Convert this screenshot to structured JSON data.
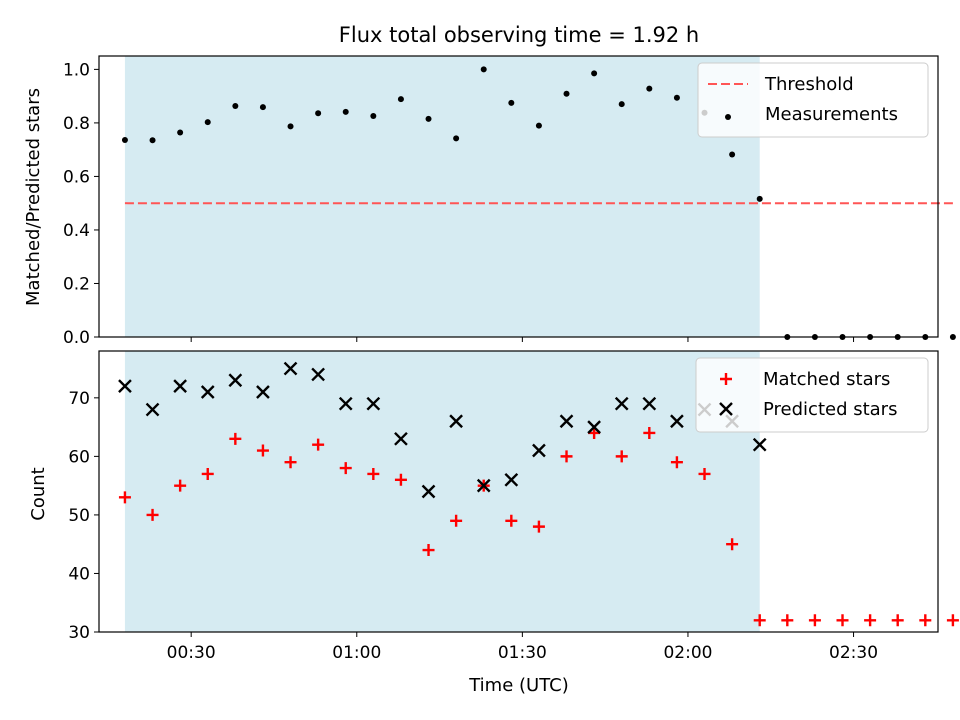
{
  "figure": {
    "title": "Flux total observing time = 1.92 h",
    "xlabel": "Time (UTC)"
  },
  "chart_data": [
    {
      "type": "scatter",
      "ylabel": "Matched/Predicted stars",
      "ylim": [
        0.0,
        1.05
      ],
      "yticks": [
        0.0,
        0.2,
        0.4,
        0.6,
        0.8,
        1.0
      ],
      "ytick_labels": [
        "0.0",
        "0.2",
        "0.4",
        "0.6",
        "0.8",
        "1.0"
      ],
      "legend_position": "top-right",
      "shaded_interval": {
        "start": "00:18",
        "end": "02:13",
        "color": "#add8e6"
      },
      "threshold": {
        "name": "Threshold",
        "value": 0.5,
        "x_start": "00:18",
        "x_end": "02:48",
        "color": "#ff5555",
        "style": "dashed"
      },
      "series": [
        {
          "name": "Measurements",
          "marker": "dot",
          "color": "#000000",
          "x": [
            "00:18",
            "00:23",
            "00:28",
            "00:33",
            "00:38",
            "00:43",
            "00:48",
            "00:53",
            "00:58",
            "01:03",
            "01:08",
            "01:13",
            "01:18",
            "01:23",
            "01:28",
            "01:33",
            "01:38",
            "01:43",
            "01:48",
            "01:53",
            "01:58",
            "02:03",
            "02:08",
            "02:13",
            "02:18",
            "02:23",
            "02:28",
            "02:33",
            "02:38",
            "02:43",
            "02:48"
          ],
          "values": [
            0.736,
            0.735,
            0.764,
            0.803,
            0.863,
            0.859,
            0.787,
            0.836,
            0.841,
            0.826,
            0.889,
            0.815,
            0.742,
            1.0,
            0.875,
            0.79,
            0.909,
            0.985,
            0.87,
            0.928,
            0.894,
            0.838,
            0.682,
            0.516,
            0,
            0,
            0,
            0,
            0,
            0,
            0
          ]
        }
      ]
    },
    {
      "type": "scatter",
      "ylabel": "Count",
      "ylim": [
        30,
        78
      ],
      "yticks": [
        30,
        40,
        50,
        60,
        70
      ],
      "ytick_labels": [
        "30",
        "40",
        "50",
        "60",
        "70"
      ],
      "legend_position": "top-right",
      "shaded_interval": {
        "start": "00:18",
        "end": "02:13",
        "color": "#add8e6"
      },
      "xticks": [
        "00:30",
        "01:00",
        "01:30",
        "02:00",
        "02:30"
      ],
      "xtick_labels": [
        "00:30",
        "01:00",
        "01:30",
        "02:00",
        "02:30"
      ],
      "series": [
        {
          "name": "Matched stars",
          "marker": "plus",
          "color": "#ff0000",
          "x": [
            "00:18",
            "00:23",
            "00:28",
            "00:33",
            "00:38",
            "00:43",
            "00:48",
            "00:53",
            "00:58",
            "01:03",
            "01:08",
            "01:13",
            "01:18",
            "01:23",
            "01:28",
            "01:33",
            "01:38",
            "01:43",
            "01:48",
            "01:53",
            "01:58",
            "02:03",
            "02:08",
            "02:13",
            "02:18",
            "02:23",
            "02:28",
            "02:33",
            "02:38",
            "02:43",
            "02:48"
          ],
          "values": [
            53,
            50,
            55,
            57,
            63,
            61,
            59,
            62,
            58,
            57,
            56,
            44,
            49,
            55,
            49,
            48,
            60,
            64,
            60,
            64,
            59,
            57,
            45,
            32,
            32,
            32,
            32,
            32,
            32,
            32,
            32
          ]
        },
        {
          "name": "Predicted stars",
          "marker": "x",
          "color": "#000000",
          "x": [
            "00:18",
            "00:23",
            "00:28",
            "00:33",
            "00:38",
            "00:43",
            "00:48",
            "00:53",
            "00:58",
            "01:03",
            "01:08",
            "01:13",
            "01:18",
            "01:23",
            "01:28",
            "01:33",
            "01:38",
            "01:43",
            "01:48",
            "01:53",
            "01:58",
            "02:03",
            "02:08",
            "02:13"
          ],
          "values": [
            72,
            68,
            72,
            71,
            73,
            71,
            75,
            74,
            69,
            69,
            63,
            54,
            66,
            55,
            56,
            61,
            66,
            65,
            69,
            69,
            66,
            68,
            66,
            62
          ]
        }
      ]
    }
  ]
}
